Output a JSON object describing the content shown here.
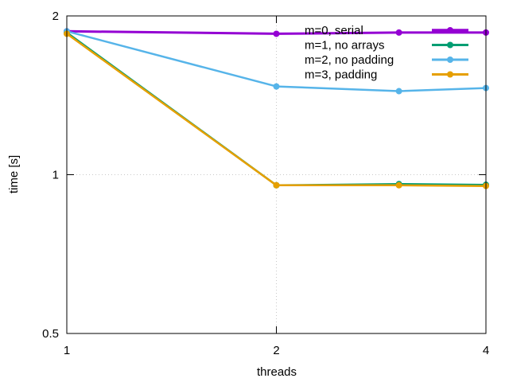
{
  "chart_data": {
    "type": "line",
    "title": "",
    "xlabel": "threads",
    "ylabel": "time [s]",
    "x_scale": "log2",
    "y_scale": "log",
    "xlim": [
      1,
      4
    ],
    "ylim": [
      0.5,
      2
    ],
    "x_ticks": [
      {
        "value": 1,
        "label": "1"
      },
      {
        "value": 2,
        "label": "2"
      },
      {
        "value": 4,
        "label": "4"
      }
    ],
    "y_ticks": [
      {
        "value": 0.5,
        "label": "0.5"
      },
      {
        "value": 1,
        "label": "1"
      },
      {
        "value": 2,
        "label": "2"
      }
    ],
    "grid": true,
    "legend_position": "top-right",
    "x": [
      1,
      2,
      3,
      4
    ],
    "series": [
      {
        "name": "m=0, serial",
        "color": "#9400d3",
        "width": 3,
        "values": [
          1.87,
          1.85,
          1.86,
          1.86
        ]
      },
      {
        "name": "m=1, no arrays",
        "color": "#009e73",
        "width": 2.5,
        "values": [
          1.86,
          0.955,
          0.96,
          0.957
        ]
      },
      {
        "name": "m=2, no padding",
        "color": "#56b4e9",
        "width": 2.5,
        "values": [
          1.87,
          1.47,
          1.44,
          1.46
        ]
      },
      {
        "name": "m=3, padding",
        "color": "#e69f00",
        "width": 2.5,
        "values": [
          1.85,
          0.955,
          0.955,
          0.952
        ]
      }
    ]
  }
}
